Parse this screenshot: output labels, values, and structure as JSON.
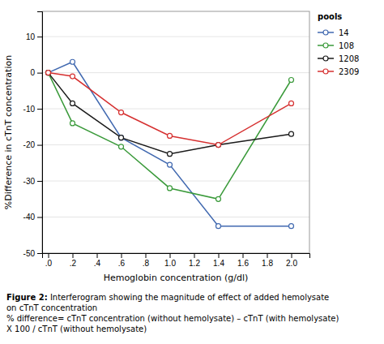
{
  "chart_data": {
    "type": "line",
    "x_label": "Hemoglobin concentration (g/dl)",
    "y_label": "%Difference in cTnT concentration",
    "x": [
      0.0,
      0.2,
      0.6,
      1.0,
      1.4,
      2.0
    ],
    "series": [
      {
        "name": "14",
        "color": "#4169b0",
        "marker": "circle",
        "values": [
          0.0,
          3.0,
          -18.0,
          -25.5,
          -42.5,
          -42.5
        ]
      },
      {
        "name": "108",
        "color": "#3a9a3a",
        "marker": "circle",
        "values": [
          0.0,
          -14.0,
          -20.5,
          -32.0,
          -35.0,
          -2.0
        ]
      },
      {
        "name": "1208",
        "color": "#1a1a1a",
        "marker": "circle",
        "values": [
          0.0,
          -8.5,
          -18.0,
          -22.5,
          -20.0,
          -17.0
        ]
      },
      {
        "name": "2309",
        "color": "#d63030",
        "marker": "circle",
        "values": [
          0.0,
          -1.0,
          -11.0,
          -17.5,
          -20.0,
          -8.5
        ]
      }
    ],
    "xlim": [
      -0.05,
      2.15
    ],
    "ylim": [
      -50,
      17
    ],
    "xticks": [
      {
        "value": 0.0,
        "label": ".0"
      },
      {
        "value": 0.2,
        "label": ".2"
      },
      {
        "value": 0.4,
        "label": ".4"
      },
      {
        "value": 0.6,
        "label": ".6"
      },
      {
        "value": 0.8,
        "label": ".8"
      },
      {
        "value": 1.0,
        "label": "1.0"
      },
      1.2,
      1.4,
      1.6,
      1.8,
      {
        "value": 2.0,
        "label": "2.0"
      }
    ],
    "yticks": [
      -50,
      -40,
      -30,
      -20,
      -10,
      0,
      10
    ],
    "grid": "y",
    "legend": "right",
    "legend_title": "pools",
    "caption": [
      "Figure 2:",
      "Interferogram showing the magnitude of effect of added hemolysate",
      "on cTnT concentration",
      "% difference= cTnT concentration (without hemolysate) – cTnT (with hemolysate)",
      "X 100 / cTnT (without hemolysate)"
    ]
  }
}
